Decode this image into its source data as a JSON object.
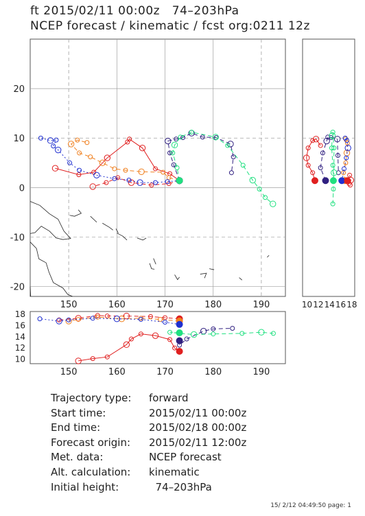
{
  "header": {
    "line1": "ft 2015/02/11 00:00z   74–203hPa",
    "line2": "NCEP forecast / kinematic / fcst org:0211 12z"
  },
  "info": [
    {
      "label": "Trajectory type:",
      "value": "forward"
    },
    {
      "label": "Start time:",
      "value": "2015/02/11 00:00z"
    },
    {
      "label": "End time:",
      "value": "2015/02/18 00:00z"
    },
    {
      "label": "Forecast origin:",
      "value": "2015/02/11 12:00z"
    },
    {
      "label": "Met. data:",
      "value": "NCEP forecast"
    },
    {
      "label": "Alt. calculation:",
      "value": "kinematic"
    },
    {
      "label": "Initial height:",
      "value": "  74–203hPa"
    }
  ],
  "footer": "15/ 2/12 04:49:50 page: 1",
  "colors": {
    "red": "#e02020",
    "orange": "#f08020",
    "blue": "#2030d0",
    "navy": "#302080",
    "green": "#20e080",
    "grid": "#a0a0a0",
    "coast": "#222222"
  },
  "chart_data": [
    {
      "type": "line",
      "panel": "map",
      "xlim": [
        142,
        195
      ],
      "ylim": [
        -22,
        30
      ],
      "xticks": [
        "150",
        "160",
        "170",
        "180",
        "190"
      ],
      "yticks": [
        "20",
        "10",
        "0",
        "-10",
        "-20"
      ],
      "grid": true,
      "series": [
        {
          "color": "red",
          "style": "solid",
          "points": [
            [
              173,
              1.4
            ],
            [
              171,
              2.8
            ],
            [
              168,
              3.8
            ],
            [
              165.3,
              8.0
            ],
            [
              162.6,
              9.8
            ],
            [
              162.2,
              9.2
            ],
            [
              158.0,
              6.0
            ],
            [
              155.2,
              3.1
            ],
            [
              152.1,
              2.6
            ],
            [
              147.2,
              3.9
            ]
          ]
        },
        {
          "color": "red",
          "style": "dashed",
          "points": [
            [
              173,
              1.4
            ],
            [
              170.8,
              0.8
            ],
            [
              167.2,
              0.5
            ],
            [
              163.0,
              1.0
            ],
            [
              160.2,
              2.0
            ],
            [
              157.8,
              1.0
            ],
            [
              155.0,
              0.2
            ]
          ]
        },
        {
          "color": "orange",
          "style": "dashed",
          "points": [
            [
              173,
              1.4
            ],
            [
              170.8,
              2.0
            ],
            [
              169.6,
              3.1
            ],
            [
              165.1,
              3.2
            ],
            [
              161.8,
              3.5
            ],
            [
              159.5,
              3.8
            ],
            [
              157.0,
              5.0
            ],
            [
              154.5,
              6.2
            ],
            [
              152.2,
              7.0
            ],
            [
              150.5,
              8.8
            ],
            [
              151.8,
              9.6
            ],
            [
              153.8,
              9.1
            ]
          ]
        },
        {
          "color": "blue",
          "style": "dotted",
          "points": [
            [
              173,
              1.4
            ],
            [
              170.5,
              1.2
            ],
            [
              168.0,
              1.0
            ],
            [
              164.8,
              1.0
            ],
            [
              162.5,
              1.5
            ],
            [
              159.5,
              1.8
            ],
            [
              155.8,
              2.5
            ],
            [
              152.2,
              3.5
            ],
            [
              150.2,
              5.0
            ],
            [
              147.8,
              7.6
            ],
            [
              146.8,
              8.4
            ],
            [
              147.4,
              9.6
            ],
            [
              146.2,
              9.5
            ],
            [
              144.2,
              10.0
            ]
          ]
        },
        {
          "color": "navy",
          "style": "dashed",
          "points": [
            [
              173,
              1.4
            ],
            [
              171.8,
              4.6
            ],
            [
              171.0,
              7.0
            ],
            [
              170.6,
              9.4
            ],
            [
              172.3,
              9.8
            ],
            [
              173.7,
              10.1
            ],
            [
              175.5,
              11.0
            ],
            [
              177.8,
              10.2
            ],
            [
              180.6,
              10.1
            ],
            [
              183.6,
              8.8
            ],
            [
              184.2,
              6.2
            ],
            [
              183.8,
              3.0
            ]
          ]
        },
        {
          "color": "green",
          "style": "dashed",
          "points": [
            [
              173,
              1.4
            ],
            [
              172.5,
              4.0
            ],
            [
              171.6,
              7.0
            ],
            [
              172.0,
              8.6
            ],
            [
              173.2,
              10.2
            ],
            [
              175.5,
              11.2
            ],
            [
              180.5,
              10.2
            ],
            [
              183.0,
              8.5
            ],
            [
              186.2,
              4.5
            ],
            [
              188.2,
              1.5
            ],
            [
              189.6,
              -0.3
            ],
            [
              190.8,
              -2.0
            ],
            [
              192.4,
              -3.3
            ]
          ]
        }
      ]
    },
    {
      "type": "line",
      "panel": "height-vs-longitude",
      "xlim": [
        142,
        195
      ],
      "ylim": [
        9.2,
        18.5
      ],
      "xticks": [
        "150",
        "160",
        "170",
        "180",
        "190"
      ],
      "yticks": [
        "18",
        "16",
        "14",
        "12",
        "10"
      ],
      "series": [
        {
          "color": "red",
          "style": "dashed",
          "points": [
            [
              173,
              17.2
            ],
            [
              170,
              17.4
            ],
            [
              167,
              17.6
            ],
            [
              162,
              17.7
            ],
            [
              158,
              17.7
            ],
            [
              156,
              17.8
            ],
            [
              152,
              17.3
            ],
            [
              148,
              17.0
            ]
          ]
        },
        {
          "color": "orange",
          "style": "dashed",
          "points": [
            [
              173,
              16.8
            ],
            [
              169,
              17.1
            ],
            [
              165,
              17.3
            ],
            [
              161,
              17.2
            ],
            [
              156,
              17.5
            ],
            [
              152,
              17.1
            ],
            [
              150,
              16.8
            ]
          ]
        },
        {
          "color": "blue",
          "style": "dotted",
          "points": [
            [
              173,
              16.2
            ],
            [
              170,
              16.6
            ],
            [
              165,
              17.1
            ],
            [
              160,
              17.2
            ],
            [
              155,
              17.3
            ],
            [
              150,
              17.0
            ],
            [
              148,
              16.8
            ],
            [
              144,
              17.2
            ]
          ]
        },
        {
          "color": "navy",
          "style": "dashed",
          "points": [
            [
              173,
              13.3
            ],
            [
              173,
              12.5
            ],
            [
              174.5,
              13.6
            ],
            [
              178,
              15.0
            ],
            [
              180,
              15.4
            ],
            [
              184,
              15.5
            ]
          ]
        },
        {
          "color": "green",
          "style": "dashed",
          "points": [
            [
              173,
              14.7
            ],
            [
              171,
              14.8
            ],
            [
              173,
              14.6
            ],
            [
              176,
              14.4
            ],
            [
              180,
              14.5
            ],
            [
              186,
              14.6
            ],
            [
              190,
              14.8
            ],
            [
              192.5,
              14.6
            ]
          ]
        },
        {
          "color": "red",
          "style": "solid",
          "points": [
            [
              173,
              11.4
            ],
            [
              172,
              12.0
            ],
            [
              171,
              13.5
            ],
            [
              168,
              14.2
            ],
            [
              165,
              14.5
            ],
            [
              163,
              13.6
            ],
            [
              162,
              12.6
            ],
            [
              158,
              10.4
            ],
            [
              155,
              10.1
            ],
            [
              152,
              9.7
            ]
          ]
        }
      ]
    },
    {
      "type": "line",
      "panel": "latitude-vs-height",
      "xlim": [
        9.2,
        18.5
      ],
      "ylim": [
        -22,
        30
      ],
      "xticks": [
        "10",
        "12",
        "14",
        "16",
        "18"
      ],
      "series": [
        {
          "color": "red",
          "style": "solid",
          "points": [
            [
              11.4,
              1.4
            ],
            [
              11,
              3
            ],
            [
              10.2,
              4.5
            ],
            [
              9.9,
              6
            ],
            [
              10.2,
              8
            ],
            [
              11,
              9.5
            ],
            [
              11.6,
              9.8
            ],
            [
              12.4,
              8.5
            ]
          ]
        },
        {
          "color": "orange",
          "style": "dashed",
          "points": [
            [
              16.8,
              1.4
            ],
            [
              16.5,
              3
            ],
            [
              16.9,
              5
            ],
            [
              17.1,
              7
            ],
            [
              17.2,
              9
            ],
            [
              16.9,
              9.8
            ]
          ]
        },
        {
          "color": "blue",
          "style": "dotted",
          "points": [
            [
              16.2,
              1.4
            ],
            [
              16.6,
              3.8
            ],
            [
              17.0,
              6
            ],
            [
              17.3,
              8
            ],
            [
              17.1,
              9.5
            ],
            [
              16.8,
              10
            ]
          ]
        },
        {
          "color": "navy",
          "style": "dashed",
          "points": [
            [
              13.3,
              1.4
            ],
            [
              12.4,
              4
            ],
            [
              12.8,
              7
            ],
            [
              13.5,
              9.4
            ],
            [
              13.7,
              10.2
            ],
            [
              14.3,
              10.1
            ],
            [
              15.4,
              9.8
            ],
            [
              15.5,
              6.5
            ],
            [
              15.6,
              3
            ]
          ]
        },
        {
          "color": "green",
          "style": "dashed",
          "points": [
            [
              14.7,
              1.4
            ],
            [
              14.6,
              4.5
            ],
            [
              14.4,
              8
            ],
            [
              14.5,
              10.5
            ],
            [
              14.6,
              11.2
            ],
            [
              14.8,
              8
            ],
            [
              14.8,
              3
            ],
            [
              14.7,
              -0.3
            ],
            [
              14.6,
              -3.3
            ]
          ]
        },
        {
          "color": "red",
          "style": "dashed",
          "points": [
            [
              17.2,
              1.4
            ],
            [
              17.5,
              0.8
            ],
            [
              17.7,
              0.5
            ],
            [
              17.8,
              1.5
            ],
            [
              17.6,
              2.5
            ]
          ]
        }
      ]
    }
  ]
}
